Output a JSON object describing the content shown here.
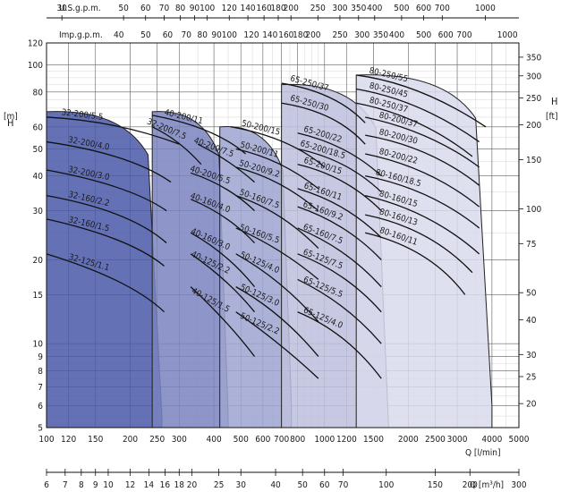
{
  "chart_data": {
    "type": "area",
    "title": "",
    "x_axis": {
      "label": "Q [l/min]",
      "scale": "log",
      "range": [
        100,
        5000
      ],
      "ticks": [
        100,
        120,
        150,
        200,
        250,
        300,
        400,
        500,
        600,
        700,
        800,
        1000,
        1200,
        1500,
        2000,
        2500,
        3000,
        4000,
        5000
      ]
    },
    "x_axis_m3h": {
      "label": "Q [m³/h]",
      "ticks": [
        6,
        7,
        8,
        9,
        10,
        12,
        14,
        16,
        18,
        20,
        25,
        30,
        40,
        50,
        60,
        70,
        100,
        150,
        200,
        300
      ]
    },
    "x_axis_usgpm": {
      "label": "U.S.g.p.m.",
      "ticks": [
        30,
        50,
        60,
        70,
        80,
        90,
        100,
        120,
        140,
        160,
        180,
        200,
        250,
        300,
        350,
        400,
        500,
        600,
        700,
        1000
      ]
    },
    "x_axis_impgpm": {
      "label": "Imp.g.p.m.",
      "ticks": [
        40,
        50,
        60,
        70,
        80,
        90,
        100,
        120,
        140,
        160,
        180,
        200,
        250,
        300,
        350,
        400,
        500,
        600,
        700,
        1000
      ]
    },
    "y_axis": {
      "label": "H [m]",
      "label_h": "H",
      "label_unit": "[m]",
      "scale": "log",
      "range": [
        5,
        120
      ],
      "ticks": [
        5,
        6,
        7,
        8,
        9,
        10,
        15,
        20,
        30,
        40,
        50,
        60,
        80,
        100,
        120
      ]
    },
    "y_axis_ft": {
      "label": "H [ft]",
      "label_h": "H",
      "label_unit": "[ft]",
      "ticks": [
        20,
        25,
        30,
        40,
        50,
        75,
        100,
        150,
        200,
        250,
        300,
        350
      ]
    },
    "grid": true,
    "families": [
      {
        "name": "32",
        "color": "#4a58a8",
        "region": {
          "q": [
            100,
            260
          ],
          "h_left": 68,
          "h_right": 5.5
        }
      },
      {
        "name": "40",
        "color": "#7a82bf",
        "region": {
          "q": [
            240,
            450
          ],
          "h_left": 68,
          "h_right": 5.5
        }
      },
      {
        "name": "50",
        "color": "#9ea4d0",
        "region": {
          "q": [
            420,
            760
          ],
          "h_left": 60,
          "h_right": 6
        }
      },
      {
        "name": "65",
        "color": "#bdbfde",
        "region": {
          "q": [
            700,
            1700
          ],
          "h_left": 85,
          "h_right": 5
        }
      },
      {
        "name": "80",
        "color": "#d8d9ec",
        "region": {
          "q": [
            1300,
            4000
          ],
          "h_left": 92,
          "h_right": 6
        }
      }
    ],
    "series": [
      {
        "name": "32-200/5.5",
        "family": "32",
        "points": [
          [
            100,
            65
          ],
          [
            180,
            63
          ],
          [
            300,
            52
          ]
        ]
      },
      {
        "name": "32-200/4.0",
        "family": "32",
        "points": [
          [
            100,
            53
          ],
          [
            200,
            48
          ],
          [
            280,
            38
          ]
        ]
      },
      {
        "name": "32-200/3.0",
        "family": "32",
        "points": [
          [
            100,
            42
          ],
          [
            200,
            37
          ],
          [
            270,
            30
          ]
        ]
      },
      {
        "name": "32-160/2.2",
        "family": "32",
        "points": [
          [
            100,
            34
          ],
          [
            200,
            30
          ],
          [
            270,
            23
          ]
        ]
      },
      {
        "name": "32-160/1.5",
        "family": "32",
        "points": [
          [
            100,
            28
          ],
          [
            200,
            24
          ],
          [
            265,
            19
          ]
        ]
      },
      {
        "name": "32-125/1.1",
        "family": "32",
        "points": [
          [
            100,
            21
          ],
          [
            200,
            17
          ],
          [
            265,
            13
          ]
        ]
      },
      {
        "name": "32-200/7.5",
        "family": "32",
        "points": [
          [
            240,
            60
          ],
          [
            300,
            54
          ],
          [
            360,
            44
          ]
        ]
      },
      {
        "name": "40-200/11",
        "family": "40",
        "points": [
          [
            240,
            66
          ],
          [
            400,
            60
          ],
          [
            520,
            48
          ]
        ]
      },
      {
        "name": "40-200/7.5",
        "family": "40",
        "points": [
          [
            350,
            52
          ],
          [
            450,
            46
          ],
          [
            560,
            38
          ]
        ]
      },
      {
        "name": "40-200/5.5",
        "family": "40",
        "points": [
          [
            330,
            41
          ],
          [
            450,
            37
          ],
          [
            560,
            30
          ]
        ]
      },
      {
        "name": "40-160/4.0",
        "family": "40",
        "points": [
          [
            330,
            33
          ],
          [
            450,
            29
          ],
          [
            560,
            23
          ]
        ]
      },
      {
        "name": "40-160/3.0",
        "family": "40",
        "points": [
          [
            330,
            25
          ],
          [
            450,
            21
          ],
          [
            560,
            16
          ]
        ]
      },
      {
        "name": "40-125/2.2",
        "family": "40",
        "points": [
          [
            330,
            21
          ],
          [
            450,
            17
          ],
          [
            560,
            13
          ]
        ]
      },
      {
        "name": "40-125/1.5",
        "family": "40",
        "points": [
          [
            330,
            16
          ],
          [
            450,
            12
          ],
          [
            560,
            9
          ]
        ]
      },
      {
        "name": "50-200/15",
        "family": "50",
        "points": [
          [
            460,
            60
          ],
          [
            750,
            55
          ],
          [
            1000,
            43
          ]
        ]
      },
      {
        "name": "50-200/11",
        "family": "50",
        "points": [
          [
            480,
            50
          ],
          [
            700,
            46
          ],
          [
            950,
            36
          ]
        ]
      },
      {
        "name": "50-200/9.2",
        "family": "50",
        "points": [
          [
            480,
            43
          ],
          [
            700,
            39
          ],
          [
            950,
            30
          ]
        ]
      },
      {
        "name": "50-160/7.5",
        "family": "50",
        "points": [
          [
            480,
            34
          ],
          [
            700,
            30
          ],
          [
            950,
            22
          ]
        ]
      },
      {
        "name": "50-160/5.5",
        "family": "50",
        "points": [
          [
            480,
            26
          ],
          [
            700,
            22
          ],
          [
            950,
            17
          ]
        ]
      },
      {
        "name": "50-125/4.0",
        "family": "50",
        "points": [
          [
            480,
            21
          ],
          [
            700,
            17
          ],
          [
            950,
            12
          ]
        ]
      },
      {
        "name": "50-125/3.0",
        "family": "50",
        "points": [
          [
            480,
            16
          ],
          [
            700,
            13
          ],
          [
            950,
            9
          ]
        ]
      },
      {
        "name": "50-125/2.2",
        "family": "50",
        "points": [
          [
            480,
            13
          ],
          [
            700,
            10
          ],
          [
            950,
            7.5
          ]
        ]
      },
      {
        "name": "65-250/37",
        "family": "65",
        "points": [
          [
            700,
            86
          ],
          [
            1100,
            80
          ],
          [
            1400,
            62
          ]
        ]
      },
      {
        "name": "65-250/30",
        "family": "65",
        "points": [
          [
            700,
            73
          ],
          [
            1100,
            68
          ],
          [
            1400,
            52
          ]
        ]
      },
      {
        "name": "65-200/22",
        "family": "65",
        "points": [
          [
            800,
            57
          ],
          [
            1200,
            52
          ],
          [
            1600,
            40
          ]
        ]
      },
      {
        "name": "65-200/18.5",
        "family": "65",
        "points": [
          [
            800,
            50
          ],
          [
            1200,
            46
          ],
          [
            1600,
            35
          ]
        ]
      },
      {
        "name": "65-200/15",
        "family": "65",
        "points": [
          [
            800,
            44
          ],
          [
            1200,
            40
          ],
          [
            1600,
            30
          ]
        ]
      },
      {
        "name": "65-160/11",
        "family": "65",
        "points": [
          [
            800,
            36
          ],
          [
            1200,
            32
          ],
          [
            1600,
            24
          ]
        ]
      },
      {
        "name": "65-160/9.2",
        "family": "65",
        "points": [
          [
            800,
            31
          ],
          [
            1200,
            27
          ],
          [
            1600,
            20
          ]
        ]
      },
      {
        "name": "65-160/7.5",
        "family": "65",
        "points": [
          [
            800,
            26
          ],
          [
            1200,
            22
          ],
          [
            1600,
            16
          ]
        ]
      },
      {
        "name": "65-125/7.5",
        "family": "65",
        "points": [
          [
            800,
            21
          ],
          [
            1200,
            18
          ],
          [
            1600,
            13
          ]
        ]
      },
      {
        "name": "65-125/5.5",
        "family": "65",
        "points": [
          [
            800,
            17
          ],
          [
            1200,
            14
          ],
          [
            1600,
            10
          ]
        ]
      },
      {
        "name": "65-125/4.0",
        "family": "65",
        "points": [
          [
            800,
            13
          ],
          [
            1200,
            11
          ],
          [
            1600,
            7.5
          ]
        ]
      },
      {
        "name": "80-250/55",
        "family": "80",
        "points": [
          [
            1300,
            92
          ],
          [
            2200,
            86
          ],
          [
            3800,
            60
          ]
        ]
      },
      {
        "name": "80-250/45",
        "family": "80",
        "points": [
          [
            1300,
            82
          ],
          [
            2200,
            75
          ],
          [
            3600,
            53
          ]
        ]
      },
      {
        "name": "80-250/37",
        "family": "80",
        "points": [
          [
            1300,
            73
          ],
          [
            2200,
            66
          ],
          [
            3400,
            47
          ]
        ]
      },
      {
        "name": "80-200/37",
        "family": "80",
        "points": [
          [
            1400,
            65
          ],
          [
            2400,
            58
          ],
          [
            3600,
            43
          ]
        ]
      },
      {
        "name": "80-200/30",
        "family": "80",
        "points": [
          [
            1400,
            56
          ],
          [
            2400,
            51
          ],
          [
            3600,
            37
          ]
        ]
      },
      {
        "name": "80-200/22",
        "family": "80",
        "points": [
          [
            1400,
            48
          ],
          [
            2400,
            43
          ],
          [
            3600,
            31
          ]
        ]
      },
      {
        "name": "80-160/18.5",
        "family": "80",
        "points": [
          [
            1400,
            40
          ],
          [
            2400,
            36
          ],
          [
            3600,
            26
          ]
        ]
      },
      {
        "name": "80-160/15",
        "family": "80",
        "points": [
          [
            1400,
            34
          ],
          [
            2400,
            30
          ],
          [
            3600,
            21
          ]
        ]
      },
      {
        "name": "80-160/13",
        "family": "80",
        "points": [
          [
            1400,
            29
          ],
          [
            2400,
            26
          ],
          [
            3400,
            18
          ]
        ]
      },
      {
        "name": "80-160/11",
        "family": "80",
        "points": [
          [
            1400,
            25
          ],
          [
            2400,
            22
          ],
          [
            3200,
            15
          ]
        ]
      }
    ]
  }
}
